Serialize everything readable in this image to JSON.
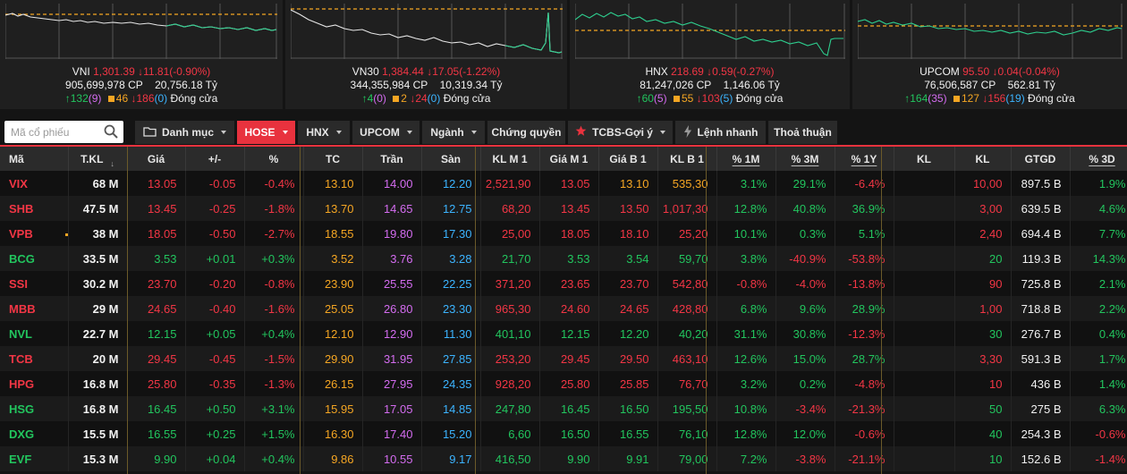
{
  "indices": [
    {
      "name": "VNI",
      "value": "1,301.39",
      "change": "11.81(-0.90%)",
      "volume": "905,699,978 CP",
      "trade_value": "20,756.18 Tỷ",
      "up": "132",
      "up_ceil": "(9)",
      "ref": "46",
      "down": "186",
      "down_floor": "(0)",
      "status": "Đóng cửa"
    },
    {
      "name": "VN30",
      "value": "1,384.44",
      "change": "17.05(-1.22%)",
      "volume": "344,355,984 CP",
      "trade_value": "10,319.34 Tỷ",
      "up": "4",
      "up_ceil": "(0)",
      "ref": "2",
      "down": "24",
      "down_floor": "(0)",
      "status": "Đóng cửa"
    },
    {
      "name": "HNX",
      "value": "218.69",
      "change": "0.59(-0.27%)",
      "volume": "81,247,026 CP",
      "trade_value": "1,146.06 Tỷ",
      "up": "60",
      "up_ceil": "(5)",
      "ref": "55",
      "down": "103",
      "down_floor": "(5)",
      "status": "Đóng cửa"
    },
    {
      "name": "UPCOM",
      "value": "95.50",
      "change": "0.04(-0.04%)",
      "volume": "76,506,587 CP",
      "trade_value": "562.81 Tỷ",
      "up": "164",
      "up_ceil": "(35)",
      "ref": "127",
      "down": "156",
      "down_floor": "(19)",
      "status": "Đóng cửa"
    }
  ],
  "search": {
    "placeholder": "Mã cổ phiếu"
  },
  "tabs": [
    {
      "label": "Danh mục",
      "icon": "folder-icon",
      "dropdown": true
    },
    {
      "label": "HOSE",
      "dropdown": true,
      "active": true
    },
    {
      "label": "HNX",
      "dropdown": true
    },
    {
      "label": "UPCOM",
      "dropdown": true
    },
    {
      "label": "Ngành",
      "dropdown": true
    },
    {
      "label": "Chứng quyền",
      "dropdown": false
    },
    {
      "label": "TCBS-Gợi ý",
      "icon": "star-icon",
      "dropdown": true
    },
    {
      "label": "Lệnh nhanh",
      "icon": "lightning-icon",
      "dropdown": false
    },
    {
      "label": "Thoả thuận",
      "dropdown": false
    }
  ],
  "columns": [
    "Mã",
    "T.KL",
    "Giá",
    "+/-",
    "%",
    "TC",
    "Trần",
    "Sàn",
    "KL M 1",
    "Giá M 1",
    "Giá B 1",
    "KL B 1",
    "% 1M",
    "% 3M",
    "% 1Y",
    "KL",
    "KL",
    "GTGD",
    "% 3D"
  ],
  "rows": [
    [
      "VIX",
      "68 M",
      "13.05",
      "-0.05",
      "-0.4%",
      "13.10",
      "14.00",
      "12.20",
      "2,521,90",
      "13.05",
      "13.10",
      "535,30",
      "3.1%",
      "29.1%",
      "-6.4%",
      "",
      "10,00",
      "897.5 B",
      "1.9%"
    ],
    [
      "SHB",
      "47.5 M",
      "13.45",
      "-0.25",
      "-1.8%",
      "13.70",
      "14.65",
      "12.75",
      "68,20",
      "13.45",
      "13.50",
      "1,017,30",
      "12.8%",
      "40.8%",
      "36.9%",
      "",
      "3,00",
      "639.5 B",
      "4.6%"
    ],
    [
      "VPB",
      "38 M",
      "18.05",
      "-0.50",
      "-2.7%",
      "18.55",
      "19.80",
      "17.30",
      "25,00",
      "18.05",
      "18.10",
      "25,20",
      "10.1%",
      "0.3%",
      "5.1%",
      "",
      "2,40",
      "694.4 B",
      "7.7%"
    ],
    [
      "BCG",
      "33.5 M",
      "3.53",
      "+0.01",
      "+0.3%",
      "3.52",
      "3.76",
      "3.28",
      "21,70",
      "3.53",
      "3.54",
      "59,70",
      "3.8%",
      "-40.9%",
      "-53.8%",
      "",
      "20",
      "119.3 B",
      "14.3%"
    ],
    [
      "SSI",
      "30.2 M",
      "23.70",
      "-0.20",
      "-0.8%",
      "23.90",
      "25.55",
      "22.25",
      "371,20",
      "23.65",
      "23.70",
      "542,80",
      "-0.8%",
      "-4.0%",
      "-13.8%",
      "",
      "90",
      "725.8 B",
      "2.1%"
    ],
    [
      "MBB",
      "29 M",
      "24.65",
      "-0.40",
      "-1.6%",
      "25.05",
      "26.80",
      "23.30",
      "965,30",
      "24.60",
      "24.65",
      "428,80",
      "6.8%",
      "9.6%",
      "28.9%",
      "",
      "1,00",
      "718.8 B",
      "2.2%"
    ],
    [
      "NVL",
      "22.7 M",
      "12.15",
      "+0.05",
      "+0.4%",
      "12.10",
      "12.90",
      "11.30",
      "401,10",
      "12.15",
      "12.20",
      "40,20",
      "31.1%",
      "30.8%",
      "-12.3%",
      "",
      "30",
      "276.7 B",
      "0.4%"
    ],
    [
      "TCB",
      "20 M",
      "29.45",
      "-0.45",
      "-1.5%",
      "29.90",
      "31.95",
      "27.85",
      "253,20",
      "29.45",
      "29.50",
      "463,10",
      "12.6%",
      "15.0%",
      "28.7%",
      "",
      "3,30",
      "591.3 B",
      "1.7%"
    ],
    [
      "HPG",
      "16.8 M",
      "25.80",
      "-0.35",
      "-1.3%",
      "26.15",
      "27.95",
      "24.35",
      "928,20",
      "25.80",
      "25.85",
      "76,70",
      "3.2%",
      "0.2%",
      "-4.8%",
      "",
      "10",
      "436 B",
      "1.4%"
    ],
    [
      "HSG",
      "16.8 M",
      "16.45",
      "+0.50",
      "+3.1%",
      "15.95",
      "17.05",
      "14.85",
      "247,80",
      "16.45",
      "16.50",
      "195,50",
      "10.8%",
      "-3.4%",
      "-21.3%",
      "",
      "50",
      "275 B",
      "6.3%"
    ],
    [
      "DXG",
      "15.5 M",
      "16.55",
      "+0.25",
      "+1.5%",
      "16.30",
      "17.40",
      "15.20",
      "6,60",
      "16.50",
      "16.55",
      "76,10",
      "12.8%",
      "12.0%",
      "-0.6%",
      "",
      "40",
      "254.3 B",
      "-0.6%"
    ],
    [
      "EVF",
      "15.3 M",
      "9.90",
      "+0.04",
      "+0.4%",
      "9.86",
      "10.55",
      "9.17",
      "416,50",
      "9.90",
      "9.91",
      "79,00",
      "7.2%",
      "-3.8%",
      "-21.1%",
      "",
      "10",
      "152.6 B",
      "-1.4%"
    ]
  ],
  "colors": {
    "up": "#22c55e",
    "down": "#f23645",
    "reference": "#f5a623",
    "ceiling": "#d46cf0",
    "floor": "#3cb4ff",
    "accent": "#e8323e"
  }
}
